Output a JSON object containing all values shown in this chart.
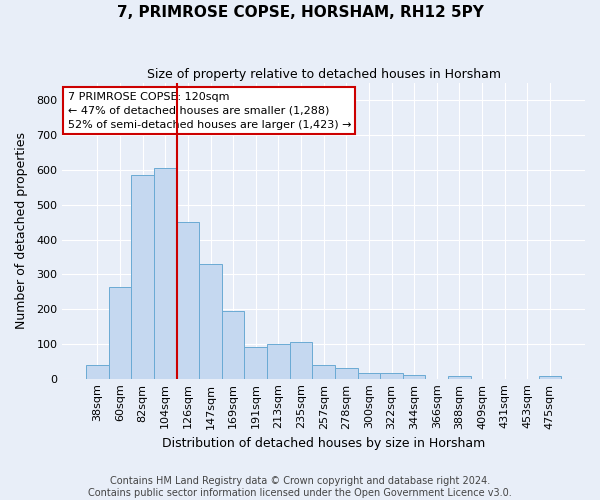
{
  "title": "7, PRIMROSE COPSE, HORSHAM, RH12 5PY",
  "subtitle": "Size of property relative to detached houses in Horsham",
  "xlabel": "Distribution of detached houses by size in Horsham",
  "ylabel": "Number of detached properties",
  "categories": [
    "38sqm",
    "60sqm",
    "82sqm",
    "104sqm",
    "126sqm",
    "147sqm",
    "169sqm",
    "191sqm",
    "213sqm",
    "235sqm",
    "257sqm",
    "278sqm",
    "300sqm",
    "322sqm",
    "344sqm",
    "366sqm",
    "388sqm",
    "409sqm",
    "431sqm",
    "453sqm",
    "475sqm"
  ],
  "values": [
    38,
    265,
    585,
    605,
    450,
    330,
    195,
    90,
    100,
    105,
    38,
    32,
    15,
    15,
    10,
    0,
    8,
    0,
    0,
    0,
    8
  ],
  "bar_color": "#c5d8f0",
  "bar_edge_color": "#6aaad4",
  "annotation_text": "7 PRIMROSE COPSE: 120sqm\n← 47% of detached houses are smaller (1,288)\n52% of semi-detached houses are larger (1,423) →",
  "annotation_box_color": "#ffffff",
  "annotation_box_edge_color": "#cc0000",
  "footer_text": "Contains HM Land Registry data © Crown copyright and database right 2024.\nContains public sector information licensed under the Open Government Licence v3.0.",
  "background_color": "#e8eef8",
  "grid_color": "#ffffff",
  "ylim": [
    0,
    850
  ],
  "yticks": [
    0,
    100,
    200,
    300,
    400,
    500,
    600,
    700,
    800
  ],
  "red_line_x": 3.5,
  "title_fontsize": 11,
  "subtitle_fontsize": 9,
  "ylabel_fontsize": 9,
  "xlabel_fontsize": 9,
  "tick_fontsize": 8,
  "annotation_fontsize": 8,
  "footer_fontsize": 7
}
